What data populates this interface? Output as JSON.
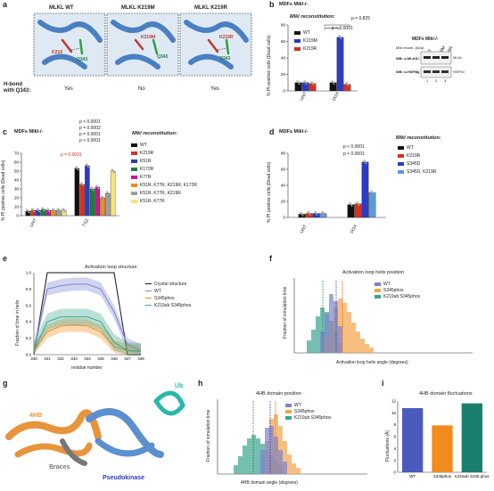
{
  "panels": {
    "a": {
      "letter": "a",
      "titles": [
        "MLKL WT",
        "MLKL K219M",
        "MLKL K219R"
      ],
      "hbond_label": "H-bond with Q343:",
      "hbond_values": [
        "Yes",
        "No",
        "Yes"
      ],
      "labels": {
        "k219": "K219",
        "q343": "Q343",
        "k219m": "K219M",
        "k219r": "K219R"
      }
    },
    "b": {
      "letter": "b",
      "header": "MDFs Mlkl-/-",
      "recon_label": "Mlkl reconstitution:",
      "legend": [
        "WT",
        "K219M",
        "K219R"
      ],
      "ylabel": "% PI-positive cells (Dead cells)",
      "x_labels": [
        "UNT",
        "DOX"
      ],
      "stats": [
        "p < 0.0001",
        "p = 0.825"
      ],
      "blot": {
        "header": "MDFs Mlkl-/-",
        "cols": [
          "WT",
          "K219M",
          "K219R"
        ],
        "mw_label": "MW recom. (kDa)",
        "rows": [
          "WB: α-MLKL",
          "WB: α-HSP90"
        ],
        "mw": [
          "50",
          "75"
        ],
        "bands": [
          "MLKL",
          "HSP90"
        ],
        "lanes": [
          "1",
          "2",
          "3"
        ]
      }
    },
    "c": {
      "letter": "c",
      "header": "MDFs Mlkl-/-",
      "recon_label": "Mlkl reconstitution:",
      "legend": [
        "WT",
        "K219R",
        "K51R",
        "K172R",
        "K77R",
        "K51R, K77R, K219R, K172R",
        "K51R, K77R, K219R",
        "K51R, K77R"
      ],
      "ylabel": "% PI positive cells (Dead cells)",
      "x_labels": [
        "UNT",
        "TSZ"
      ],
      "stats": [
        "p = 0.0031",
        "p < 0.0001",
        "p = 0.0002",
        "p = 0.0001",
        "p < 0.0001"
      ]
    },
    "d": {
      "letter": "d",
      "header": "MDFs Mlkl-/-",
      "recon_label": "Mlkl reconstitution:",
      "legend": [
        "WT",
        "K219R",
        "S345D",
        "S345D, K219R"
      ],
      "ylabel": "% PI positive cells (Dead cells)",
      "x_labels": [
        "UNT",
        "DOX"
      ],
      "stats": [
        "p < 0.0001",
        "p < 0.0001"
      ]
    },
    "e": {
      "letter": "e",
      "title": "Activation loop structure",
      "xlabel": "residue number",
      "ylabel": "Fraction of time in helix",
      "legend": [
        "Crystal structure",
        "WT",
        "S345phos",
        "K219ub S345phos"
      ]
    },
    "f": {
      "letter": "f",
      "title": "Activation loop helix position",
      "xlabel": "Activation loop helix angle (degrees)",
      "ylabel": "Fraction of simulation time",
      "legend": [
        "WT",
        "S345phos",
        "K219ub S345phos"
      ]
    },
    "g": {
      "letter": "g",
      "labels": [
        "4HB",
        "Ub",
        "Braces",
        "Pseudokinase"
      ]
    },
    "h": {
      "letter": "h",
      "title": "4HB domain position",
      "xlabel": "4HB domain angle (degrees)",
      "ylabel": "Fraction of simulation time",
      "legend": [
        "WT",
        "S345phos",
        "K219ub S345phos"
      ]
    },
    "i": {
      "letter": "i",
      "title": "4HB domain fluctuations",
      "ylabel": "Fluctuations (Å)"
    }
  },
  "colors": {
    "black": "#111111",
    "red": "#d7301f",
    "blue": "#2b3bc4",
    "green": "#1a7f3c",
    "magenta": "#c51b8a",
    "orange": "#f28c1e",
    "grey": "#9e9e9e",
    "yellow": "#f7e37a",
    "lightblue": "#5b9bd5",
    "wt_sim": "#7b83d1",
    "s345_sim": "#f5a54a",
    "k219_sim": "#3aa58f"
  },
  "chart_data": [
    {
      "type": "bar",
      "id": "b",
      "categories": [
        "UNT",
        "DOX"
      ],
      "series": [
        {
          "name": "WT",
          "values": [
            10,
            10
          ]
        },
        {
          "name": "K219M",
          "values": [
            10,
            65
          ]
        },
        {
          "name": "K219R",
          "values": [
            9,
            8
          ]
        }
      ],
      "ylim": [
        0,
        80
      ],
      "yticks": [
        0,
        20,
        40,
        60,
        80
      ]
    },
    {
      "type": "bar",
      "id": "c",
      "categories": [
        "UNT",
        "TSZ"
      ],
      "series": [
        {
          "name": "WT",
          "values": [
            5,
            53
          ]
        },
        {
          "name": "K219R",
          "values": [
            6,
            35
          ]
        },
        {
          "name": "K51R",
          "values": [
            6,
            56
          ]
        },
        {
          "name": "K172R",
          "values": [
            7,
            30
          ]
        },
        {
          "name": "K77R",
          "values": [
            6,
            32
          ]
        },
        {
          "name": "K51R, K77R, K219R, K172R",
          "values": [
            6,
            20
          ]
        },
        {
          "name": "K51R, K77R, K219R",
          "values": [
            6,
            25
          ]
        },
        {
          "name": "K51R, K77R",
          "values": [
            6,
            50
          ]
        }
      ],
      "ylim": [
        0,
        70
      ],
      "yticks": [
        0,
        10,
        20,
        30,
        40,
        50,
        60,
        70
      ]
    },
    {
      "type": "bar",
      "id": "d",
      "categories": [
        "UNT",
        "DOX"
      ],
      "series": [
        {
          "name": "WT",
          "values": [
            4,
            16
          ]
        },
        {
          "name": "K219R",
          "values": [
            5,
            17
          ]
        },
        {
          "name": "S345D",
          "values": [
            5,
            69
          ]
        },
        {
          "name": "S345D, K219R",
          "values": [
            5,
            31
          ]
        }
      ],
      "ylim": [
        0,
        80
      ],
      "yticks": [
        0,
        20,
        40,
        60,
        80
      ]
    },
    {
      "type": "line",
      "id": "e",
      "x": [
        340,
        341,
        342,
        343,
        344,
        345,
        346,
        347,
        348
      ],
      "series": [
        {
          "name": "Crystal structure",
          "values": [
            0,
            1,
            1,
            1,
            1,
            1,
            1,
            0,
            0
          ]
        },
        {
          "name": "WT",
          "values": [
            0.05,
            0.8,
            0.84,
            0.86,
            0.86,
            0.8,
            0.52,
            0.12,
            0.05
          ]
        },
        {
          "name": "S345phos",
          "values": [
            0.05,
            0.28,
            0.35,
            0.36,
            0.35,
            0.28,
            0.1,
            0.05,
            0.04
          ]
        },
        {
          "name": "K219ub S345phos",
          "values": [
            0.05,
            0.4,
            0.46,
            0.46,
            0.46,
            0.4,
            0.15,
            0.05,
            0.04
          ]
        }
      ],
      "ylim": [
        0,
        1.0
      ],
      "yticks": [
        0,
        0.2,
        0.4,
        0.6,
        0.8,
        1.0
      ],
      "xlim": [
        340,
        348
      ]
    },
    {
      "type": "bar",
      "id": "i",
      "categories": [
        "WT",
        "S345phos",
        "K219ub S345 phos"
      ],
      "values": [
        10.8,
        7.9,
        11.6
      ],
      "ylim": [
        0,
        12
      ],
      "yticks": [
        0,
        2,
        4,
        6,
        8,
        10,
        12
      ]
    }
  ]
}
